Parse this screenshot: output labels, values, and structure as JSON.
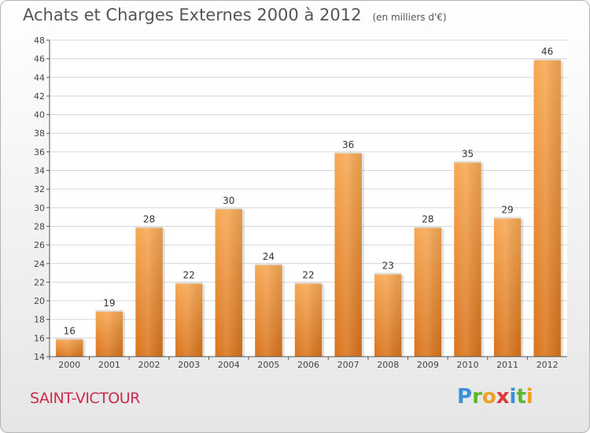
{
  "header": {
    "title": "Achats et Charges Externes 2000 à 2012",
    "unit": "(en milliers d'€)"
  },
  "footer": {
    "commune": "SAINT-VICTOUR",
    "logo_letters": [
      "P",
      "r",
      "o",
      "x",
      "i",
      "t",
      "i"
    ],
    "logo_colors": [
      "#3a8fd8",
      "#5cb82e",
      "#f0a020",
      "#d83a3a",
      "#3a8fd8",
      "#5cb82e",
      "#f0a020"
    ]
  },
  "chart_data": {
    "type": "bar",
    "categories": [
      "2000",
      "2001",
      "2002",
      "2003",
      "2004",
      "2005",
      "2006",
      "2007",
      "2008",
      "2009",
      "2010",
      "2011",
      "2012"
    ],
    "values": [
      16,
      19,
      28,
      22,
      30,
      24,
      22,
      36,
      23,
      28,
      35,
      29,
      46
    ],
    "title": "Achats et Charges Externes 2000 à 2012",
    "xlabel": "",
    "ylabel": "",
    "ylim": [
      14,
      48
    ],
    "ytick_step": 2,
    "grid": true,
    "bar_color": "#f4a04a",
    "bar_color_dark": "#d8741e"
  }
}
